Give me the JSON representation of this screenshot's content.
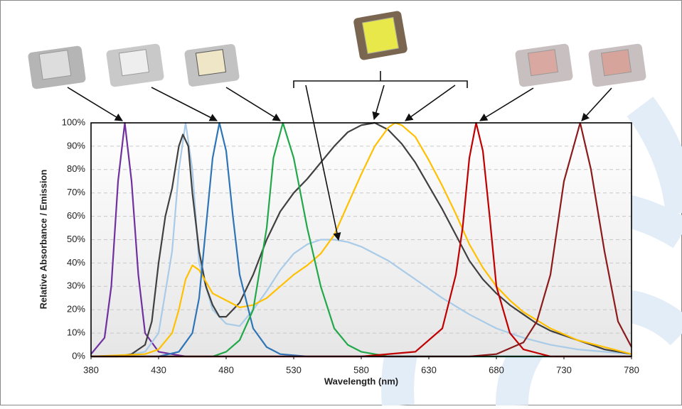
{
  "chart_data": {
    "type": "line",
    "x_label": "Wavelength (nm)",
    "y_label": "Relative Absorbance / Emission",
    "xlim": [
      380,
      780
    ],
    "xticks": [
      380,
      430,
      480,
      530,
      580,
      630,
      680,
      730,
      780
    ],
    "ylim": [
      0,
      100
    ],
    "yticks": [
      {
        "value": 0,
        "label": "0%"
      },
      {
        "value": 10,
        "label": "10%"
      },
      {
        "value": 20,
        "label": "20%"
      },
      {
        "value": 30,
        "label": "30%"
      },
      {
        "value": 40,
        "label": "40%"
      },
      {
        "value": 50,
        "label": "50%"
      },
      {
        "value": 60,
        "label": "60%"
      },
      {
        "value": 70,
        "label": "70%"
      },
      {
        "value": 80,
        "label": "80%"
      },
      {
        "value": 90,
        "label": "90%"
      },
      {
        "value": 100,
        "label": "100%"
      }
    ],
    "grid": true,
    "series": [
      {
        "color": "#7030a0",
        "x": [
          380,
          390,
          395,
          400,
          405,
          410,
          415,
          420,
          430,
          450,
          780
        ],
        "values": [
          1,
          8,
          30,
          75,
          100,
          75,
          35,
          10,
          2,
          0,
          0
        ]
      },
      {
        "color": "#a9cbe8",
        "x": [
          380,
          400,
          410,
          420,
          430,
          440,
          445,
          450,
          455,
          460,
          470,
          480,
          490,
          500,
          510,
          520,
          530,
          540,
          550,
          560,
          570,
          580,
          600,
          620,
          640,
          660,
          680,
          700,
          720,
          740,
          760,
          780
        ],
        "values": [
          0,
          0,
          1,
          2,
          10,
          45,
          80,
          100,
          80,
          40,
          20,
          14,
          13,
          20,
          28,
          37,
          44,
          48,
          50,
          50,
          49,
          47,
          41,
          33,
          25,
          18,
          12,
          8,
          5,
          3,
          2,
          1
        ]
      },
      {
        "color": "#404040",
        "x": [
          380,
          400,
          410,
          420,
          425,
          430,
          435,
          440,
          445,
          448,
          452,
          455,
          460,
          465,
          470,
          475,
          480,
          490,
          500,
          510,
          520,
          530,
          540,
          550,
          560,
          570,
          580,
          590,
          600,
          610,
          620,
          630,
          640,
          650,
          660,
          670,
          680,
          690,
          700,
          710,
          720,
          740,
          760,
          780
        ],
        "values": [
          0,
          0,
          1,
          5,
          15,
          40,
          60,
          72,
          90,
          95,
          90,
          70,
          45,
          30,
          22,
          17,
          17,
          23,
          35,
          50,
          62,
          70,
          76,
          83,
          90,
          96,
          99,
          100,
          97,
          91,
          83,
          73,
          63,
          52,
          41,
          33,
          27,
          22,
          18,
          14,
          11,
          7,
          3,
          1
        ]
      },
      {
        "color": "#ffc000",
        "x": [
          380,
          420,
          430,
          440,
          445,
          450,
          455,
          460,
          465,
          470,
          480,
          490,
          500,
          510,
          520,
          530,
          540,
          550,
          560,
          570,
          580,
          590,
          600,
          605,
          610,
          620,
          630,
          640,
          650,
          660,
          670,
          680,
          690,
          700,
          720,
          740,
          760,
          780
        ],
        "values": [
          0,
          1,
          3,
          10,
          20,
          33,
          39,
          37,
          32,
          27,
          24,
          21,
          22,
          25,
          30,
          35,
          39,
          44,
          52,
          65,
          78,
          90,
          98,
          100,
          99,
          94,
          84,
          73,
          61,
          48,
          38,
          30,
          24,
          19,
          12,
          7,
          4,
          1
        ]
      },
      {
        "color": "#2e75b6",
        "x": [
          380,
          430,
          445,
          455,
          460,
          465,
          470,
          475,
          480,
          485,
          490,
          500,
          510,
          520,
          540,
          780
        ],
        "values": [
          0,
          0,
          2,
          10,
          25,
          55,
          85,
          100,
          88,
          60,
          35,
          12,
          4,
          1,
          0,
          0
        ]
      },
      {
        "color": "#22a84a",
        "x": [
          380,
          470,
          480,
          490,
          500,
          510,
          515,
          522,
          530,
          540,
          550,
          560,
          570,
          580,
          600,
          780
        ],
        "values": [
          0,
          0,
          2,
          7,
          20,
          55,
          85,
          100,
          85,
          55,
          30,
          12,
          5,
          2,
          0,
          0
        ]
      },
      {
        "color": "#c00000",
        "x": [
          380,
          580,
          620,
          640,
          650,
          655,
          660,
          665,
          670,
          675,
          680,
          690,
          700,
          720,
          780
        ],
        "values": [
          0,
          0,
          2,
          12,
          35,
          55,
          85,
          100,
          88,
          60,
          30,
          10,
          3,
          0,
          0
        ]
      },
      {
        "color": "#8b1a1a",
        "x": [
          380,
          660,
          680,
          700,
          710,
          720,
          730,
          742,
          750,
          760,
          770,
          780
        ],
        "values": [
          0,
          0,
          1,
          6,
          15,
          35,
          75,
          100,
          80,
          45,
          15,
          4
        ]
      }
    ]
  }
}
